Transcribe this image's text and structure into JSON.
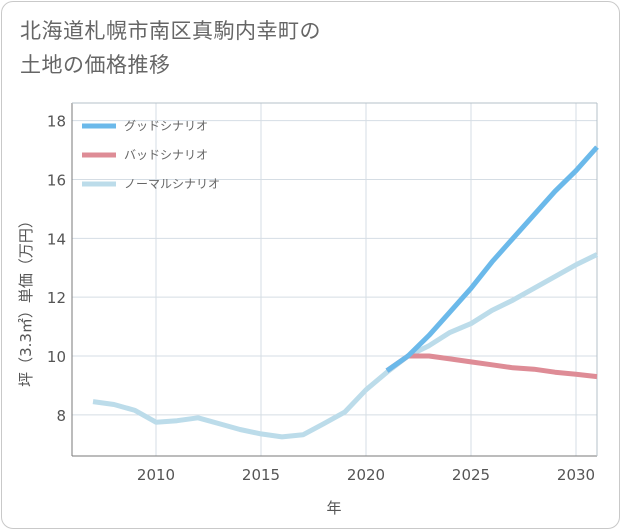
{
  "title": "北海道札幌市南区真駒内幸町の\n土地の価格推移",
  "chart_data": {
    "type": "line",
    "title": "北海道札幌市南区真駒内幸町の土地の価格推移",
    "xlabel": "年",
    "ylabel": "坪（3.3㎡）単価（万円）",
    "xlim": [
      2006,
      2031
    ],
    "ylim": [
      6.6,
      18.6
    ],
    "x_ticks": [
      2010,
      2015,
      2020,
      2025,
      2030
    ],
    "y_ticks": [
      8,
      10,
      12,
      14,
      16,
      18
    ],
    "grid": true,
    "legend_position": "top-left",
    "series": [
      {
        "name": "グッドシナリオ",
        "color": "#6bb9ea",
        "x": [
          2021,
          2022,
          2023,
          2024,
          2025,
          2026,
          2027,
          2028,
          2029,
          2030,
          2031
        ],
        "values": [
          9.5,
          10.0,
          10.7,
          11.5,
          12.3,
          13.2,
          14.0,
          14.8,
          15.6,
          16.3,
          17.1
        ]
      },
      {
        "name": "バッドシナリオ",
        "color": "#de8c96",
        "x": [
          2021,
          2022,
          2023,
          2024,
          2025,
          2026,
          2027,
          2028,
          2029,
          2030,
          2031
        ],
        "values": [
          9.5,
          10.0,
          10.0,
          9.9,
          9.8,
          9.7,
          9.6,
          9.55,
          9.45,
          9.38,
          9.3
        ]
      },
      {
        "name": "ノーマルシナリオ",
        "color": "#bcdcea",
        "x": [
          2007,
          2008,
          2009,
          2010,
          2011,
          2012,
          2013,
          2014,
          2015,
          2016,
          2017,
          2018,
          2019,
          2020,
          2021,
          2022,
          2023,
          2024,
          2025,
          2026,
          2027,
          2028,
          2029,
          2030,
          2031
        ],
        "values": [
          8.45,
          8.35,
          8.15,
          7.75,
          7.8,
          7.9,
          7.7,
          7.5,
          7.35,
          7.25,
          7.32,
          7.7,
          8.1,
          8.85,
          9.45,
          10.0,
          10.35,
          10.8,
          11.1,
          11.55,
          11.9,
          12.3,
          12.7,
          13.1,
          13.45
        ]
      }
    ]
  }
}
